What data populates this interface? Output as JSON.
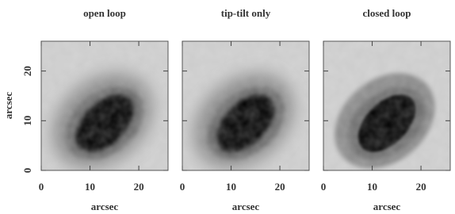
{
  "figure": {
    "panels": [
      {
        "title": "open loop",
        "x_label": "arcsec"
      },
      {
        "title": "tip-tilt only",
        "x_label": "arcsec"
      },
      {
        "title": "closed loop",
        "x_label": "arcsec"
      }
    ],
    "y_label": "arcsec",
    "xlim": [
      0,
      26
    ],
    "ylim": [
      0,
      26
    ],
    "xticks": [
      0,
      10,
      20
    ],
    "yticks": [
      0,
      10,
      20
    ]
  }
}
